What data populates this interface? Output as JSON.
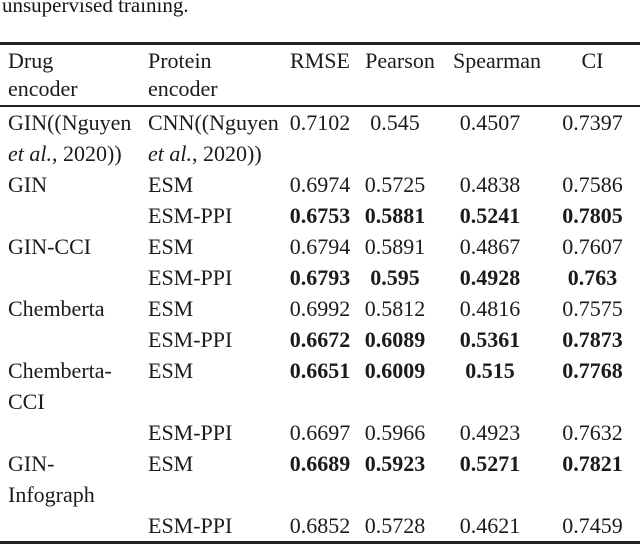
{
  "page": {
    "background": "#ffffff",
    "text_color": "#1b1b1b",
    "rule_color": "#222222"
  },
  "caption_fragment": "unsupervised training.",
  "table": {
    "header": {
      "drug_line1": "Drug",
      "drug_line2": "encoder",
      "protein_line1": "Protein",
      "protein_line2": "encoder",
      "rmse": "RMSE",
      "pearson": "Pearson",
      "spearman": "Spearman",
      "ci": "CI"
    },
    "rows": [
      {
        "drug_l1": "GIN((Nguyen",
        "drug_l2_italic": "et al.",
        "drug_l2_rest": ", 2020))",
        "protein_l1": "CNN((Nguyen",
        "protein_l2_italic": "et al.",
        "protein_l2_rest": ", 2020))",
        "rmse": "0.7102",
        "pearson": "0.545",
        "spearman": "0.4507",
        "ci": "0.7397",
        "values_bold": false
      },
      {
        "drug_l1": "GIN",
        "protein_l1": "ESM",
        "rmse": "0.6974",
        "pearson": "0.5725",
        "spearman": "0.4838",
        "ci": "0.7586",
        "values_bold": false
      },
      {
        "drug_l1": "",
        "protein_l1": "ESM-PPI",
        "rmse": "0.6753",
        "pearson": "0.5881",
        "spearman": "0.5241",
        "ci": "0.7805",
        "values_bold": true
      },
      {
        "drug_l1": "GIN-CCI",
        "protein_l1": "ESM",
        "rmse": "0.6794",
        "pearson": "0.5891",
        "spearman": "0.4867",
        "ci": "0.7607",
        "values_bold": false
      },
      {
        "drug_l1": "",
        "protein_l1": "ESM-PPI",
        "rmse": "0.6793",
        "pearson": "0.595",
        "spearman": "0.4928",
        "ci": "0.763",
        "values_bold": true
      },
      {
        "drug_l1": "Chemberta",
        "protein_l1": "ESM",
        "rmse": "0.6992",
        "pearson": "0.5812",
        "spearman": "0.4816",
        "ci": "0.7575",
        "values_bold": false
      },
      {
        "drug_l1": "",
        "protein_l1": "ESM-PPI",
        "rmse": "0.6672",
        "pearson": "0.6089",
        "spearman": "0.5361",
        "ci": "0.7873",
        "values_bold": true
      },
      {
        "drug_l1": "Chemberta-",
        "drug_l2_rest": "CCI",
        "protein_l1": "ESM",
        "rmse": "0.6651",
        "pearson": "0.6009",
        "spearman": "0.515",
        "ci": "0.7768",
        "values_bold": true
      },
      {
        "drug_l1": "",
        "protein_l1": "ESM-PPI",
        "rmse": "0.6697",
        "pearson": "0.5966",
        "spearman": "0.4923",
        "ci": "0.7632",
        "values_bold": false
      },
      {
        "drug_l1": "GIN-",
        "drug_l2_rest": "Infograph",
        "protein_l1": "ESM",
        "rmse": "0.6689",
        "pearson": "0.5923",
        "spearman": "0.5271",
        "ci": "0.7821",
        "values_bold": true
      },
      {
        "drug_l1": "",
        "protein_l1": "ESM-PPI",
        "rmse": "0.6852",
        "pearson": "0.5728",
        "spearman": "0.4621",
        "ci": "0.7459",
        "values_bold": false
      }
    ]
  }
}
